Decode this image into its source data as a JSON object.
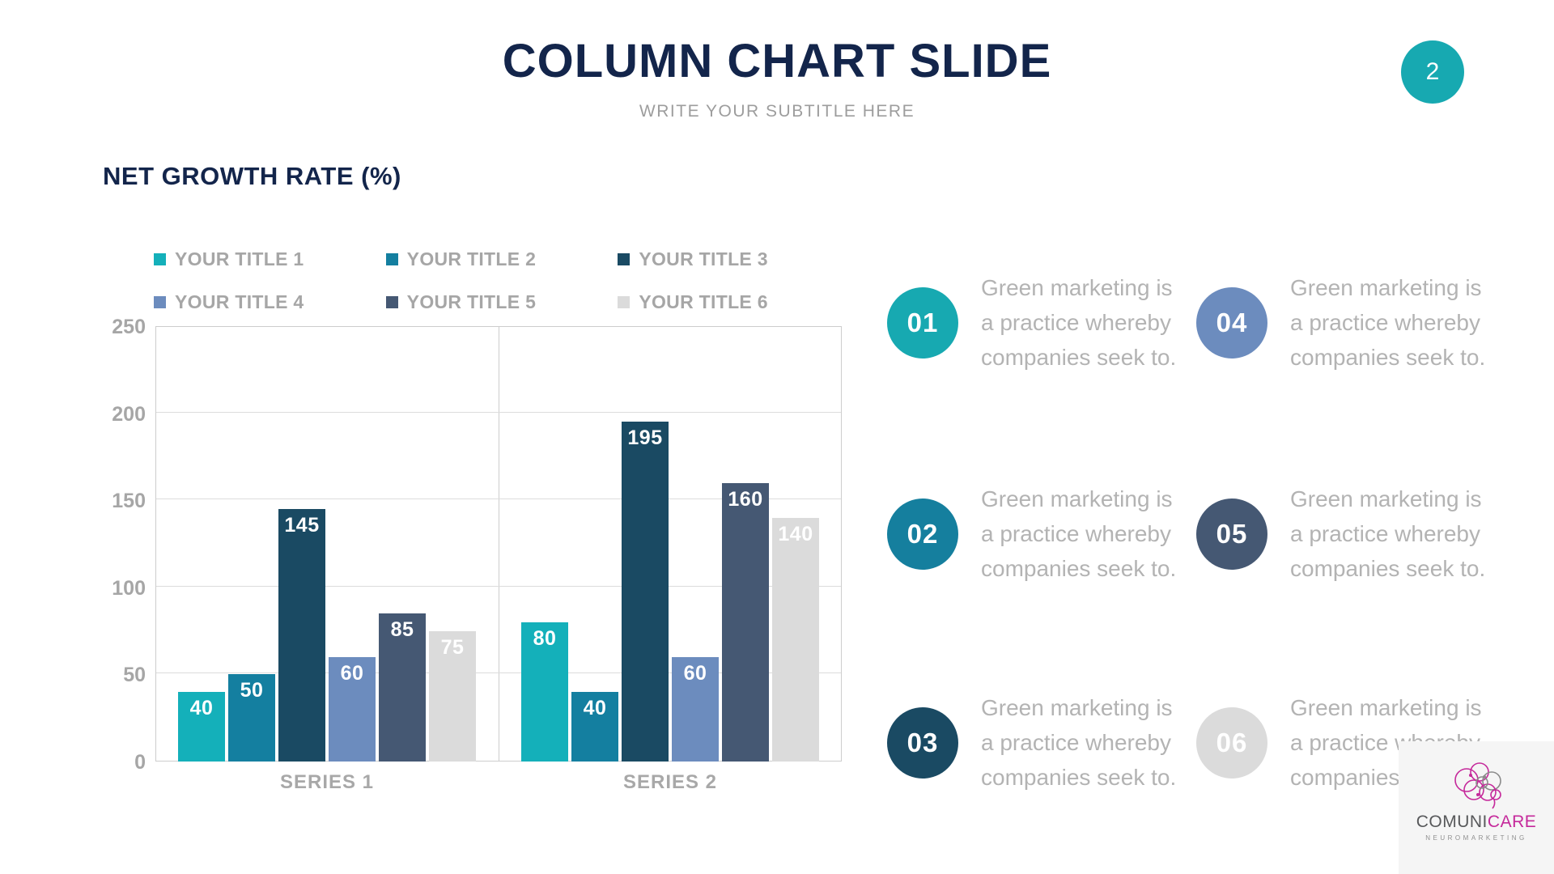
{
  "slide": {
    "title": "COLUMN CHART SLIDE",
    "subtitle": "WRITE YOUR SUBTITLE HERE",
    "page_number": "2",
    "section_heading": "NET GROWTH RATE (%)"
  },
  "colors": {
    "navy_text": "#13254B",
    "accent_teal": "#17A9B1",
    "legend_text": "#A6A6A6",
    "callout_text": "#B3B3B3",
    "grid_line": "#DCDCDC",
    "series": [
      "#14B0BA",
      "#147FA0",
      "#1A4A63",
      "#6C8CBE",
      "#455873",
      "#DBDBDB"
    ],
    "callout_circles": [
      "#17A9B1",
      "#157F9E",
      "#1A4A63",
      "#6C8CBE",
      "#455873",
      "#DBDBDB"
    ],
    "logo_box_bg": "#F5F5F5",
    "logo_magenta": "#C5299B"
  },
  "chart_data": {
    "type": "bar",
    "title": "NET GROWTH RATE (%)",
    "categories": [
      "SERIES 1",
      "SERIES 2"
    ],
    "series": [
      {
        "name": "YOUR TITLE 1",
        "values": [
          40,
          80
        ]
      },
      {
        "name": "YOUR TITLE 2",
        "values": [
          50,
          40
        ]
      },
      {
        "name": "YOUR TITLE 3",
        "values": [
          145,
          195
        ]
      },
      {
        "name": "YOUR TITLE 4",
        "values": [
          60,
          60
        ]
      },
      {
        "name": "YOUR TITLE 5",
        "values": [
          85,
          160
        ]
      },
      {
        "name": "YOUR TITLE 6",
        "values": [
          75,
          140
        ]
      }
    ],
    "xlabel": "",
    "ylabel": "",
    "ylim": [
      0,
      250
    ],
    "yticks": [
      0,
      50,
      100,
      150,
      200,
      250
    ],
    "grid": true,
    "legend_position": "top",
    "data_labels": "inside-end-white"
  },
  "callouts": {
    "text_lines": [
      "Green marketing is",
      "a practice whereby",
      "companies seek to."
    ],
    "items": [
      {
        "number": "01"
      },
      {
        "number": "02"
      },
      {
        "number": "03"
      },
      {
        "number": "04"
      },
      {
        "number": "05"
      },
      {
        "number": "06"
      }
    ]
  },
  "logo": {
    "brand_part1": "COMUNI",
    "brand_part2": "CARE",
    "tagline": "NEUROMARKETING"
  }
}
